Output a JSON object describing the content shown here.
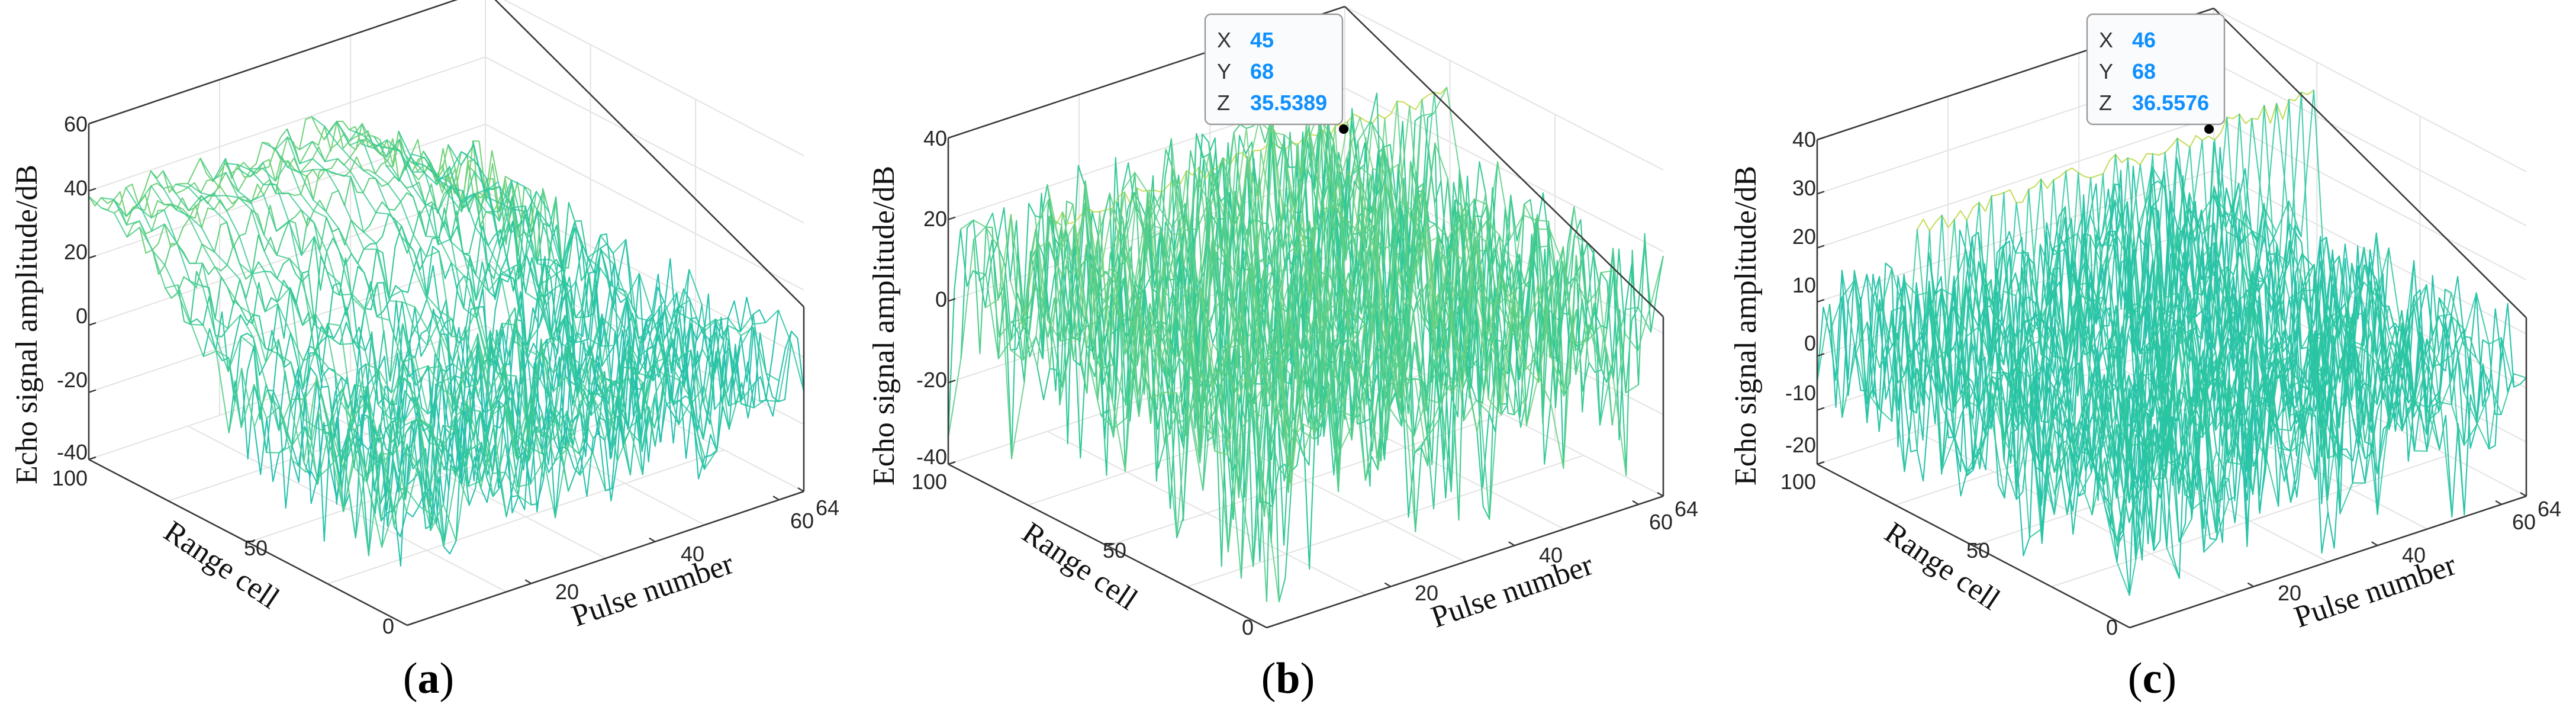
{
  "figure": {
    "panels": [
      {
        "id": "a",
        "label_text": "a"
      },
      {
        "id": "b",
        "label_text": "b"
      },
      {
        "id": "c",
        "label_text": "c"
      }
    ]
  },
  "colors": {
    "low": "#1fb4d6",
    "mid": "#2cc89a",
    "high": "#f2e34a",
    "axis": "#3a3a3a",
    "datatip_value": "#0f90ff"
  },
  "chart_data": [
    {
      "type": "surface-mesh",
      "panel": "a",
      "title": "",
      "xlabel": "Pulse number",
      "ylabel": "Range cell",
      "zlabel": "Echo signal amplitude/dB",
      "xlim": [
        0,
        64
      ],
      "ylim": [
        0,
        100
      ],
      "zlim": [
        -40,
        60
      ],
      "xticks": [
        "20",
        "40",
        "60",
        "64"
      ],
      "yticks": [
        "0",
        "50",
        "100"
      ],
      "zticks": [
        "60",
        "40",
        "20",
        "0",
        "-20",
        "-40"
      ],
      "clutter": {
        "near_range_level_db": 35,
        "near_range_cells": [
          50,
          100
        ],
        "background_level_db": -5,
        "background_min_db": -30,
        "background_max_db": 15
      },
      "datatip": null
    },
    {
      "type": "surface-mesh",
      "panel": "b",
      "title": "",
      "xlabel": "Pulse number",
      "ylabel": "Range cell",
      "zlabel": "Echo signal amplitude/dB",
      "xlim": [
        0,
        64
      ],
      "ylim": [
        0,
        100
      ],
      "zlim": [
        -40,
        40
      ],
      "xticks": [
        "20",
        "40",
        "60",
        "64"
      ],
      "yticks": [
        "0",
        "50",
        "100"
      ],
      "zticks": [
        "40",
        "20",
        "0",
        "-20",
        "-40"
      ],
      "clutter": {
        "background_level_db": 5,
        "background_min_db": -35,
        "background_max_db": 25
      },
      "target": {
        "range_cell": 68,
        "peak_db": 35.5389,
        "ridge_db": 32
      },
      "datatip": {
        "x_key": "X",
        "x": "45",
        "y_key": "Y",
        "y": "68",
        "z_key": "Z",
        "z": "35.5389"
      }
    },
    {
      "type": "surface-mesh",
      "panel": "c",
      "title": "",
      "xlabel": "Pulse number",
      "ylabel": "Range cell",
      "zlabel": "Echo signal amplitude/dB",
      "xlim": [
        0,
        64
      ],
      "ylim": [
        0,
        100
      ],
      "zlim": [
        -20,
        40
      ],
      "xticks": [
        "20",
        "40",
        "60",
        "64"
      ],
      "yticks": [
        "0",
        "50",
        "100"
      ],
      "zticks": [
        "40",
        "30",
        "20",
        "10",
        "0",
        "-10",
        "-20"
      ],
      "clutter": {
        "background_level_db": 3,
        "background_min_db": -20,
        "background_max_db": 20
      },
      "target": {
        "range_cell": 68,
        "peak_db": 36.5576,
        "ridge_db": 33
      },
      "datatip": {
        "x_key": "X",
        "x": "46",
        "y_key": "Y",
        "y": "68",
        "z_key": "Z",
        "z": "36.5576"
      }
    }
  ]
}
